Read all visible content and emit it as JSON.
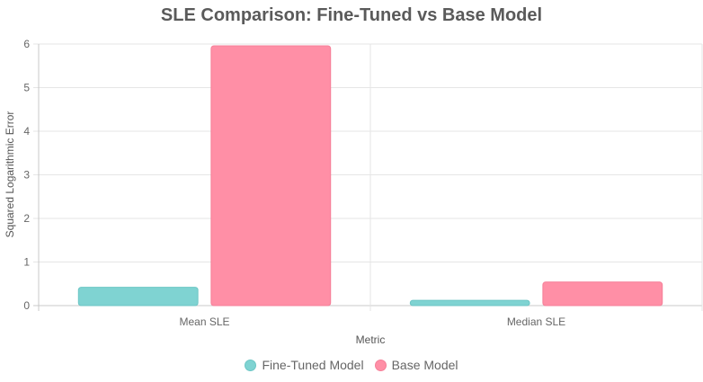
{
  "chart_data": {
    "type": "bar",
    "title": "SLE Comparison: Fine-Tuned vs Base Model",
    "xlabel": "Metric",
    "ylabel": "Squared Logarithmic Error",
    "categories": [
      "Mean SLE",
      "Median SLE"
    ],
    "series": [
      {
        "name": "Fine-Tuned Model",
        "values": [
          0.42,
          0.12
        ],
        "fill": "#7fd3d2",
        "stroke": "#6cc6c5"
      },
      {
        "name": "Base Model",
        "values": [
          5.96,
          0.54
        ],
        "fill": "#ff8fa6",
        "stroke": "#f57f98"
      }
    ],
    "ylim": [
      0,
      6
    ],
    "yticks": [
      0,
      1,
      2,
      3,
      4,
      5,
      6
    ],
    "grid": true,
    "legend_position": "bottom"
  }
}
